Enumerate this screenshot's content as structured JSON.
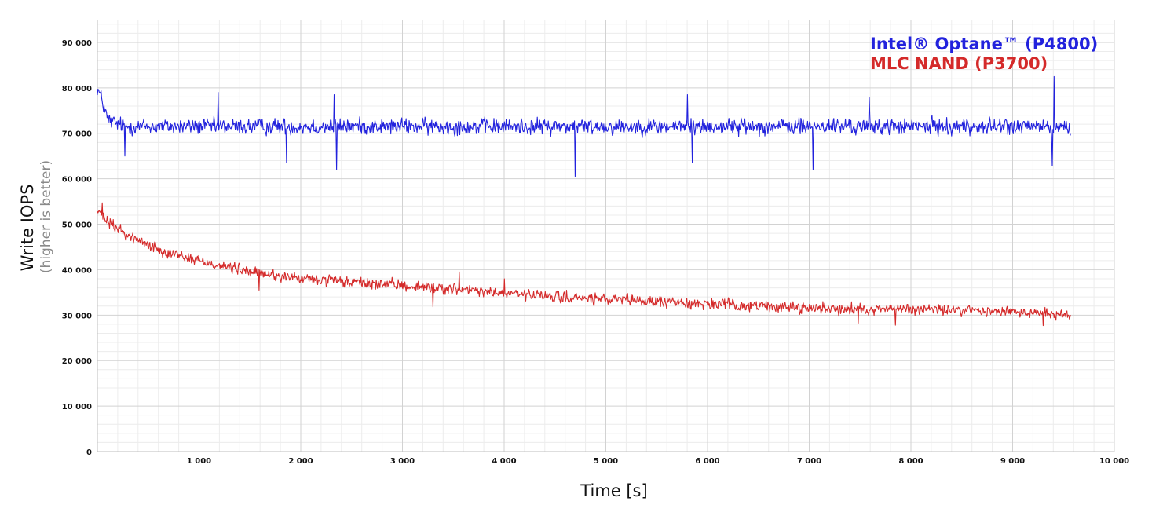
{
  "chart_data": {
    "type": "line",
    "xlabel": "Time [s]",
    "ylabel": "Write IOPS",
    "ylabel_sub": "(higher is better)",
    "xlim": [
      0,
      10000
    ],
    "ylim": [
      0,
      95000
    ],
    "x_major_ticks": [
      1000,
      2000,
      3000,
      4000,
      5000,
      6000,
      7000,
      8000,
      9000,
      10000
    ],
    "x_tick_labels": [
      "1 000",
      "2 000",
      "3 000",
      "4 000",
      "5 000",
      "6 000",
      "7 000",
      "8 000",
      "9 000",
      "10 000"
    ],
    "y_major_ticks": [
      0,
      10000,
      20000,
      30000,
      40000,
      50000,
      60000,
      70000,
      80000,
      90000
    ],
    "y_tick_labels": [
      "0",
      "10 000",
      "20 000",
      "30 000",
      "40 000",
      "50 000",
      "60 000",
      "70 000",
      "80 000",
      "90 000"
    ],
    "grid": true,
    "legend_position": "top-right",
    "series": [
      {
        "name": "Intel® Optane™ (P4800)",
        "color": "#2222dd",
        "x": [
          0,
          50,
          100,
          200,
          300,
          500,
          1000,
          1500,
          2000,
          2500,
          3000,
          3500,
          4000,
          4500,
          5000,
          5500,
          6000,
          6500,
          7000,
          7500,
          8000,
          8500,
          9000,
          9300,
          9400,
          9500,
          9570
        ],
        "y": [
          80000,
          77000,
          73000,
          72000,
          71500,
          71500,
          71500,
          71500,
          71500,
          71500,
          71500,
          71500,
          71500,
          71500,
          71500,
          71500,
          71500,
          71500,
          71500,
          71500,
          71500,
          71500,
          71500,
          71500,
          71000,
          71500,
          71000
        ],
        "noise": 2600,
        "spikes": [
          {
            "x": 270,
            "y": 65000
          },
          {
            "x": 1190,
            "y": 79000
          },
          {
            "x": 1860,
            "y": 63500
          },
          {
            "x": 2330,
            "y": 78500
          },
          {
            "x": 2350,
            "y": 62000
          },
          {
            "x": 4700,
            "y": 60500
          },
          {
            "x": 5800,
            "y": 78500
          },
          {
            "x": 5850,
            "y": 63500
          },
          {
            "x": 7040,
            "y": 62000
          },
          {
            "x": 7590,
            "y": 78000
          },
          {
            "x": 9390,
            "y": 62800
          },
          {
            "x": 9410,
            "y": 82500
          }
        ]
      },
      {
        "name": "MLC NAND (P3700)",
        "color": "#d42a2a",
        "x": [
          0,
          100,
          300,
          600,
          1000,
          1500,
          2000,
          2500,
          3000,
          3500,
          4000,
          4500,
          5000,
          5500,
          6000,
          6500,
          7000,
          7500,
          8000,
          8500,
          9000,
          9300,
          9570
        ],
        "y": [
          53000,
          50500,
          47500,
          44500,
          42000,
          39500,
          38000,
          37200,
          36500,
          35700,
          34800,
          34000,
          33400,
          33000,
          32500,
          32000,
          31600,
          31400,
          31300,
          31100,
          30700,
          30500,
          30000
        ],
        "noise": 1800,
        "spikes": [
          {
            "x": 50,
            "y": 54700
          },
          {
            "x": 1590,
            "y": 35500
          },
          {
            "x": 3300,
            "y": 31800
          },
          {
            "x": 3560,
            "y": 39500
          },
          {
            "x": 4000,
            "y": 38000
          },
          {
            "x": 7480,
            "y": 28200
          },
          {
            "x": 7850,
            "y": 27800
          },
          {
            "x": 9300,
            "y": 27700
          }
        ]
      }
    ]
  }
}
